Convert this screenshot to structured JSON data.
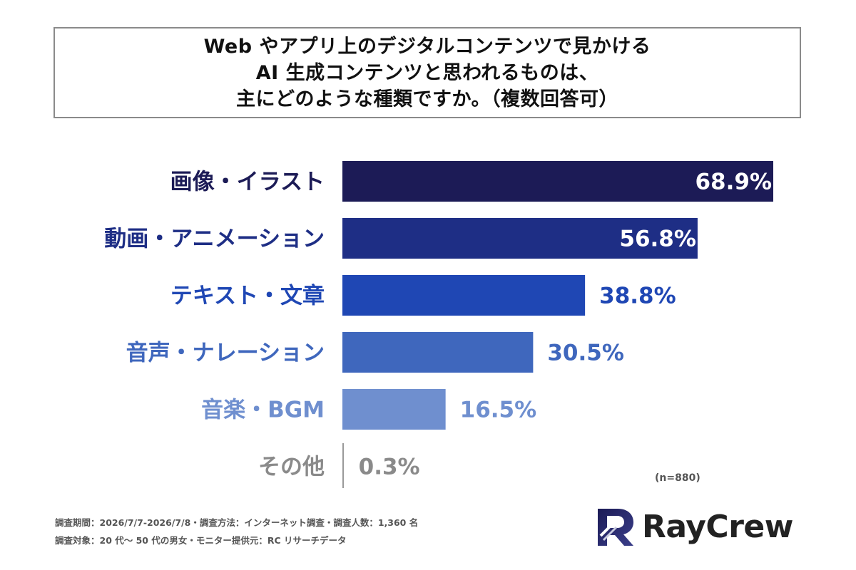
{
  "title_lines": [
    "Web やアプリ上のデジタルコンテンツで見かける",
    "AI 生成コンテンツと思われるものは、",
    "主にどのような種類ですか。（複数回答可）"
  ],
  "chart_data": {
    "type": "bar",
    "orientation": "horizontal",
    "categories": [
      "画像・イラスト",
      "動画・アニメーション",
      "テキスト・文章",
      "音声・ナレーション",
      "音楽・BGM",
      "その他"
    ],
    "values": [
      68.9,
      56.8,
      38.8,
      30.5,
      16.5,
      0.3
    ],
    "value_labels": [
      "68.9%",
      "56.8%",
      "38.8%",
      "30.5%",
      "16.5%",
      "0.3%"
    ],
    "colors": [
      "#1c1b56",
      "#1e2e85",
      "#1f47b4",
      "#3f67bd",
      "#6f8fcf",
      "#9a9a9a"
    ],
    "label_colors": [
      "#1c1b56",
      "#1e2e85",
      "#1f47b4",
      "#3f67bd",
      "#6f8fcf",
      "#8a8a8a"
    ],
    "label_inside": [
      true,
      true,
      false,
      false,
      false,
      false
    ],
    "xlim": [
      0,
      70
    ],
    "grid": false,
    "legend": "none"
  },
  "note": "(n=880)",
  "footer": {
    "line1": "調査期間：2026/7/7-2026/7/8・調査方法：インターネット調査・調査人数：1,360 名",
    "line2": "調査対象：20 代〜 50 代の男女・モニター提供元：RC リサーチデータ"
  },
  "brand": {
    "name": "RayCrew",
    "logo_icon": "raycrew-logo-icon"
  }
}
